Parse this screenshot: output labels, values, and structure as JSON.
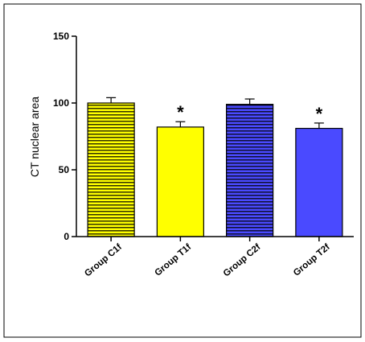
{
  "chart_data": {
    "type": "bar",
    "categories": [
      "Group C1f",
      "Group T1f",
      "Group C2f",
      "Group T2f"
    ],
    "values": [
      100,
      82,
      99,
      81
    ],
    "error": [
      4,
      4,
      4,
      4
    ],
    "significance": [
      "",
      "*",
      "",
      "*"
    ],
    "ylabel": "CT nuclear area",
    "ylim": [
      0,
      150
    ],
    "yticks": [
      0,
      50,
      100,
      150
    ],
    "bar_styles": [
      "yellow-striped",
      "yellow-solid",
      "blue-striped",
      "blue-solid"
    ],
    "colors": {
      "yellow": "#ffff00",
      "blue": "#4a4aff",
      "stripe": "#000000",
      "axis": "#000000"
    }
  }
}
